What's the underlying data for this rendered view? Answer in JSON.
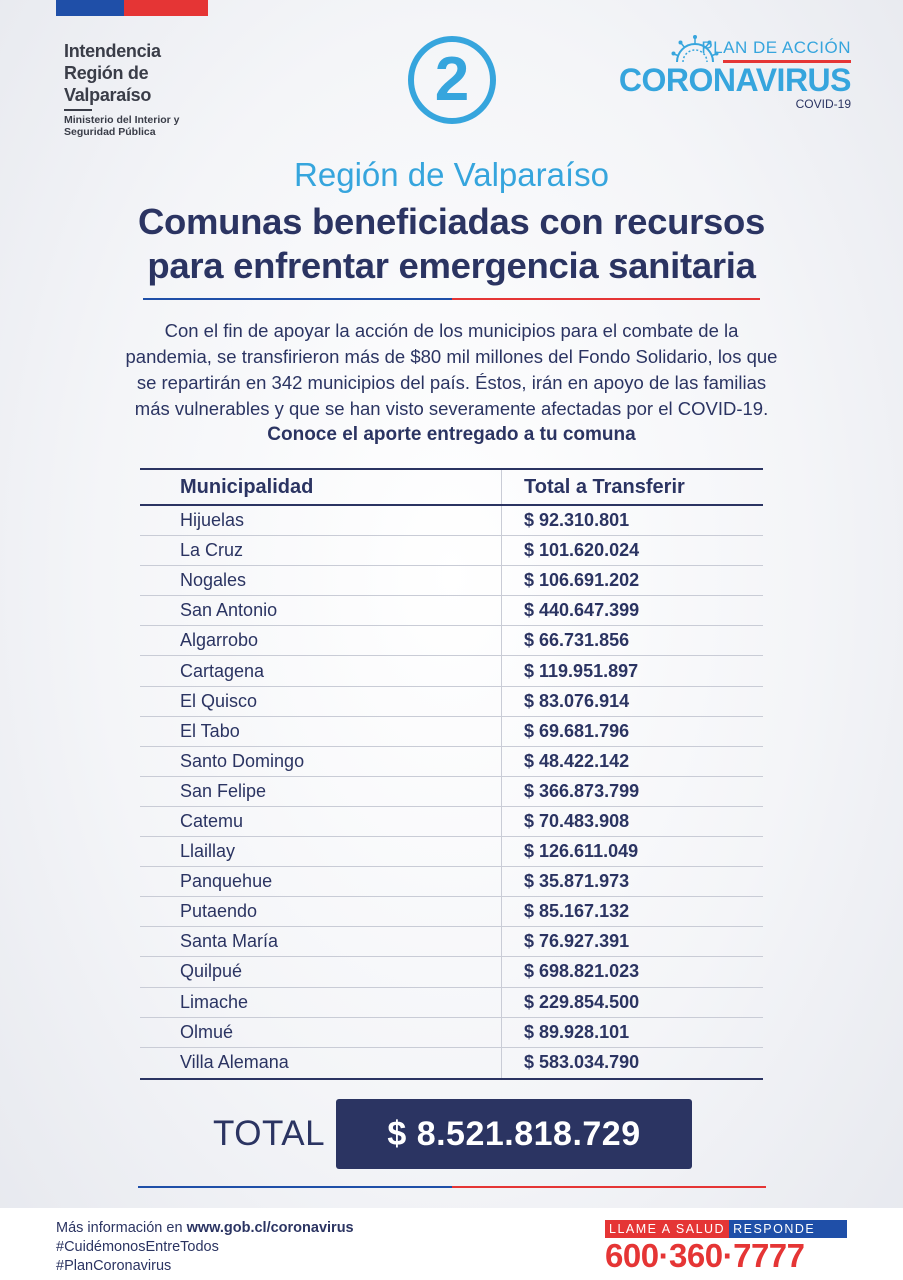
{
  "header": {
    "institution_name": "Intendencia\nRegión de\nValparaíso",
    "ministry": "Ministerio del Interior y\nSeguridad Pública",
    "step_number": "2",
    "plan_label": "PLAN DE ACCIÓN",
    "plan_title": "CORONAVIRUS",
    "plan_subtitle": "COVID-19"
  },
  "main": {
    "region": "Región de Valparaíso",
    "title": "Comunas beneficiadas con recursos\npara enfrentar emergencia sanitaria",
    "intro": "Con el fin de apoyar la acción de los municipios para el combate de la\npandemia, se transfirieron más de $80 mil millones del Fondo Solidario, los que\nse repartirán en 342 municipios del país. Éstos, irán en apoyo de las familias\nmás vulnerables y que se han visto severamente afectadas por el COVID-19.",
    "cta": "Conoce el aporte entregado a tu comuna"
  },
  "table": {
    "headers": [
      "Municipalidad",
      "Total a Transferir"
    ],
    "rows": [
      [
        "Hijuelas",
        "$ 92.310.801"
      ],
      [
        "La Cruz",
        "$ 101.620.024"
      ],
      [
        "Nogales",
        "$ 106.691.202"
      ],
      [
        "San Antonio",
        "$ 440.647.399"
      ],
      [
        "Algarrobo",
        "$ 66.731.856"
      ],
      [
        "Cartagena",
        "$ 119.951.897"
      ],
      [
        "El Quisco",
        "$ 83.076.914"
      ],
      [
        "El Tabo",
        "$ 69.681.796"
      ],
      [
        "Santo Domingo",
        "$ 48.422.142"
      ],
      [
        "San Felipe",
        "$ 366.873.799"
      ],
      [
        "Catemu",
        "$ 70.483.908"
      ],
      [
        "Llaillay",
        "$ 126.611.049"
      ],
      [
        "Panquehue",
        "$ 35.871.973"
      ],
      [
        "Putaendo",
        "$ 85.167.132"
      ],
      [
        "Santa María",
        "$ 76.927.391"
      ],
      [
        "Quilpué",
        "$ 698.821.023"
      ],
      [
        "Limache",
        "$ 229.854.500"
      ],
      [
        "Olmué",
        "$ 89.928.101"
      ],
      [
        "Villa Alemana",
        "$ 583.034.790"
      ]
    ]
  },
  "total": {
    "label": "TOTAL",
    "value": "$ 8.521.818.729"
  },
  "footer": {
    "more_prefix": "Más información en ",
    "more_url": "www.gob.cl/coronavirus",
    "hashtags": "#CuidémonosEntreTodos\n#PlanCoronavirus",
    "hotline_part1": "LLAME A SALUD",
    "hotline_part2": "RESPONDE",
    "phone": "600·360·7777"
  },
  "colors": {
    "navy": "#2b3462",
    "sky_blue": "#36a5dd",
    "flag_blue": "#1f4fa8",
    "flag_red": "#e53535"
  },
  "icons": {
    "virus": "coronavirus-icon"
  }
}
